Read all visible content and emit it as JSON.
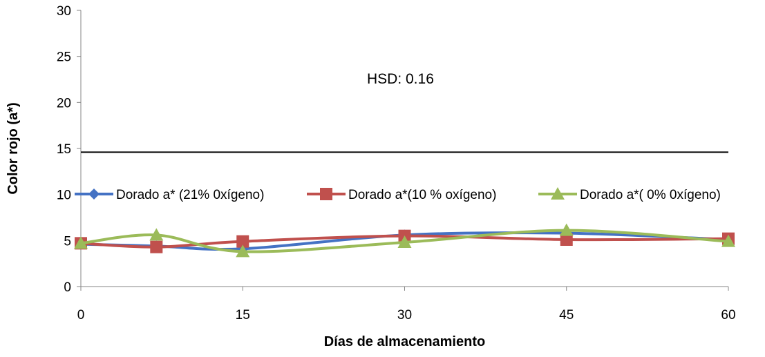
{
  "chart_data": {
    "type": "line",
    "title": "",
    "xlabel": "Días de almacenamiento",
    "ylabel": "Color rojo  (a*)",
    "x_ticks": [
      "0",
      "15",
      "30",
      "45",
      "60"
    ],
    "y_ticks": [
      "0",
      "5",
      "10",
      "15",
      "20",
      "25",
      "30"
    ],
    "xlim": [
      0,
      60
    ],
    "ylim": [
      0,
      30
    ],
    "grid": false,
    "smooth": true,
    "legend_position": "inside-middle",
    "annotation": "HSD:  0.16",
    "reference_line_y": 14.6,
    "series": [
      {
        "name": "Dorado a* (21% 0xígeno)",
        "color": "#4472C4",
        "marker": "diamond",
        "x": [
          0,
          7,
          15,
          30,
          45,
          60
        ],
        "y": [
          4.6,
          4.4,
          4.1,
          5.6,
          5.8,
          5.1
        ]
      },
      {
        "name": "Dorado a*(10 % oxígeno)",
        "color": "#C0504D",
        "marker": "square",
        "x": [
          0,
          7,
          15,
          30,
          45,
          60
        ],
        "y": [
          4.7,
          4.3,
          4.9,
          5.5,
          5.1,
          5.2
        ]
      },
      {
        "name": "Dorado a*( 0% 0xígeno)",
        "color": "#9BBB59",
        "marker": "triangle",
        "x": [
          0,
          7,
          15,
          30,
          45,
          60
        ],
        "y": [
          4.7,
          5.6,
          3.8,
          4.8,
          6.1,
          4.9
        ]
      }
    ]
  }
}
